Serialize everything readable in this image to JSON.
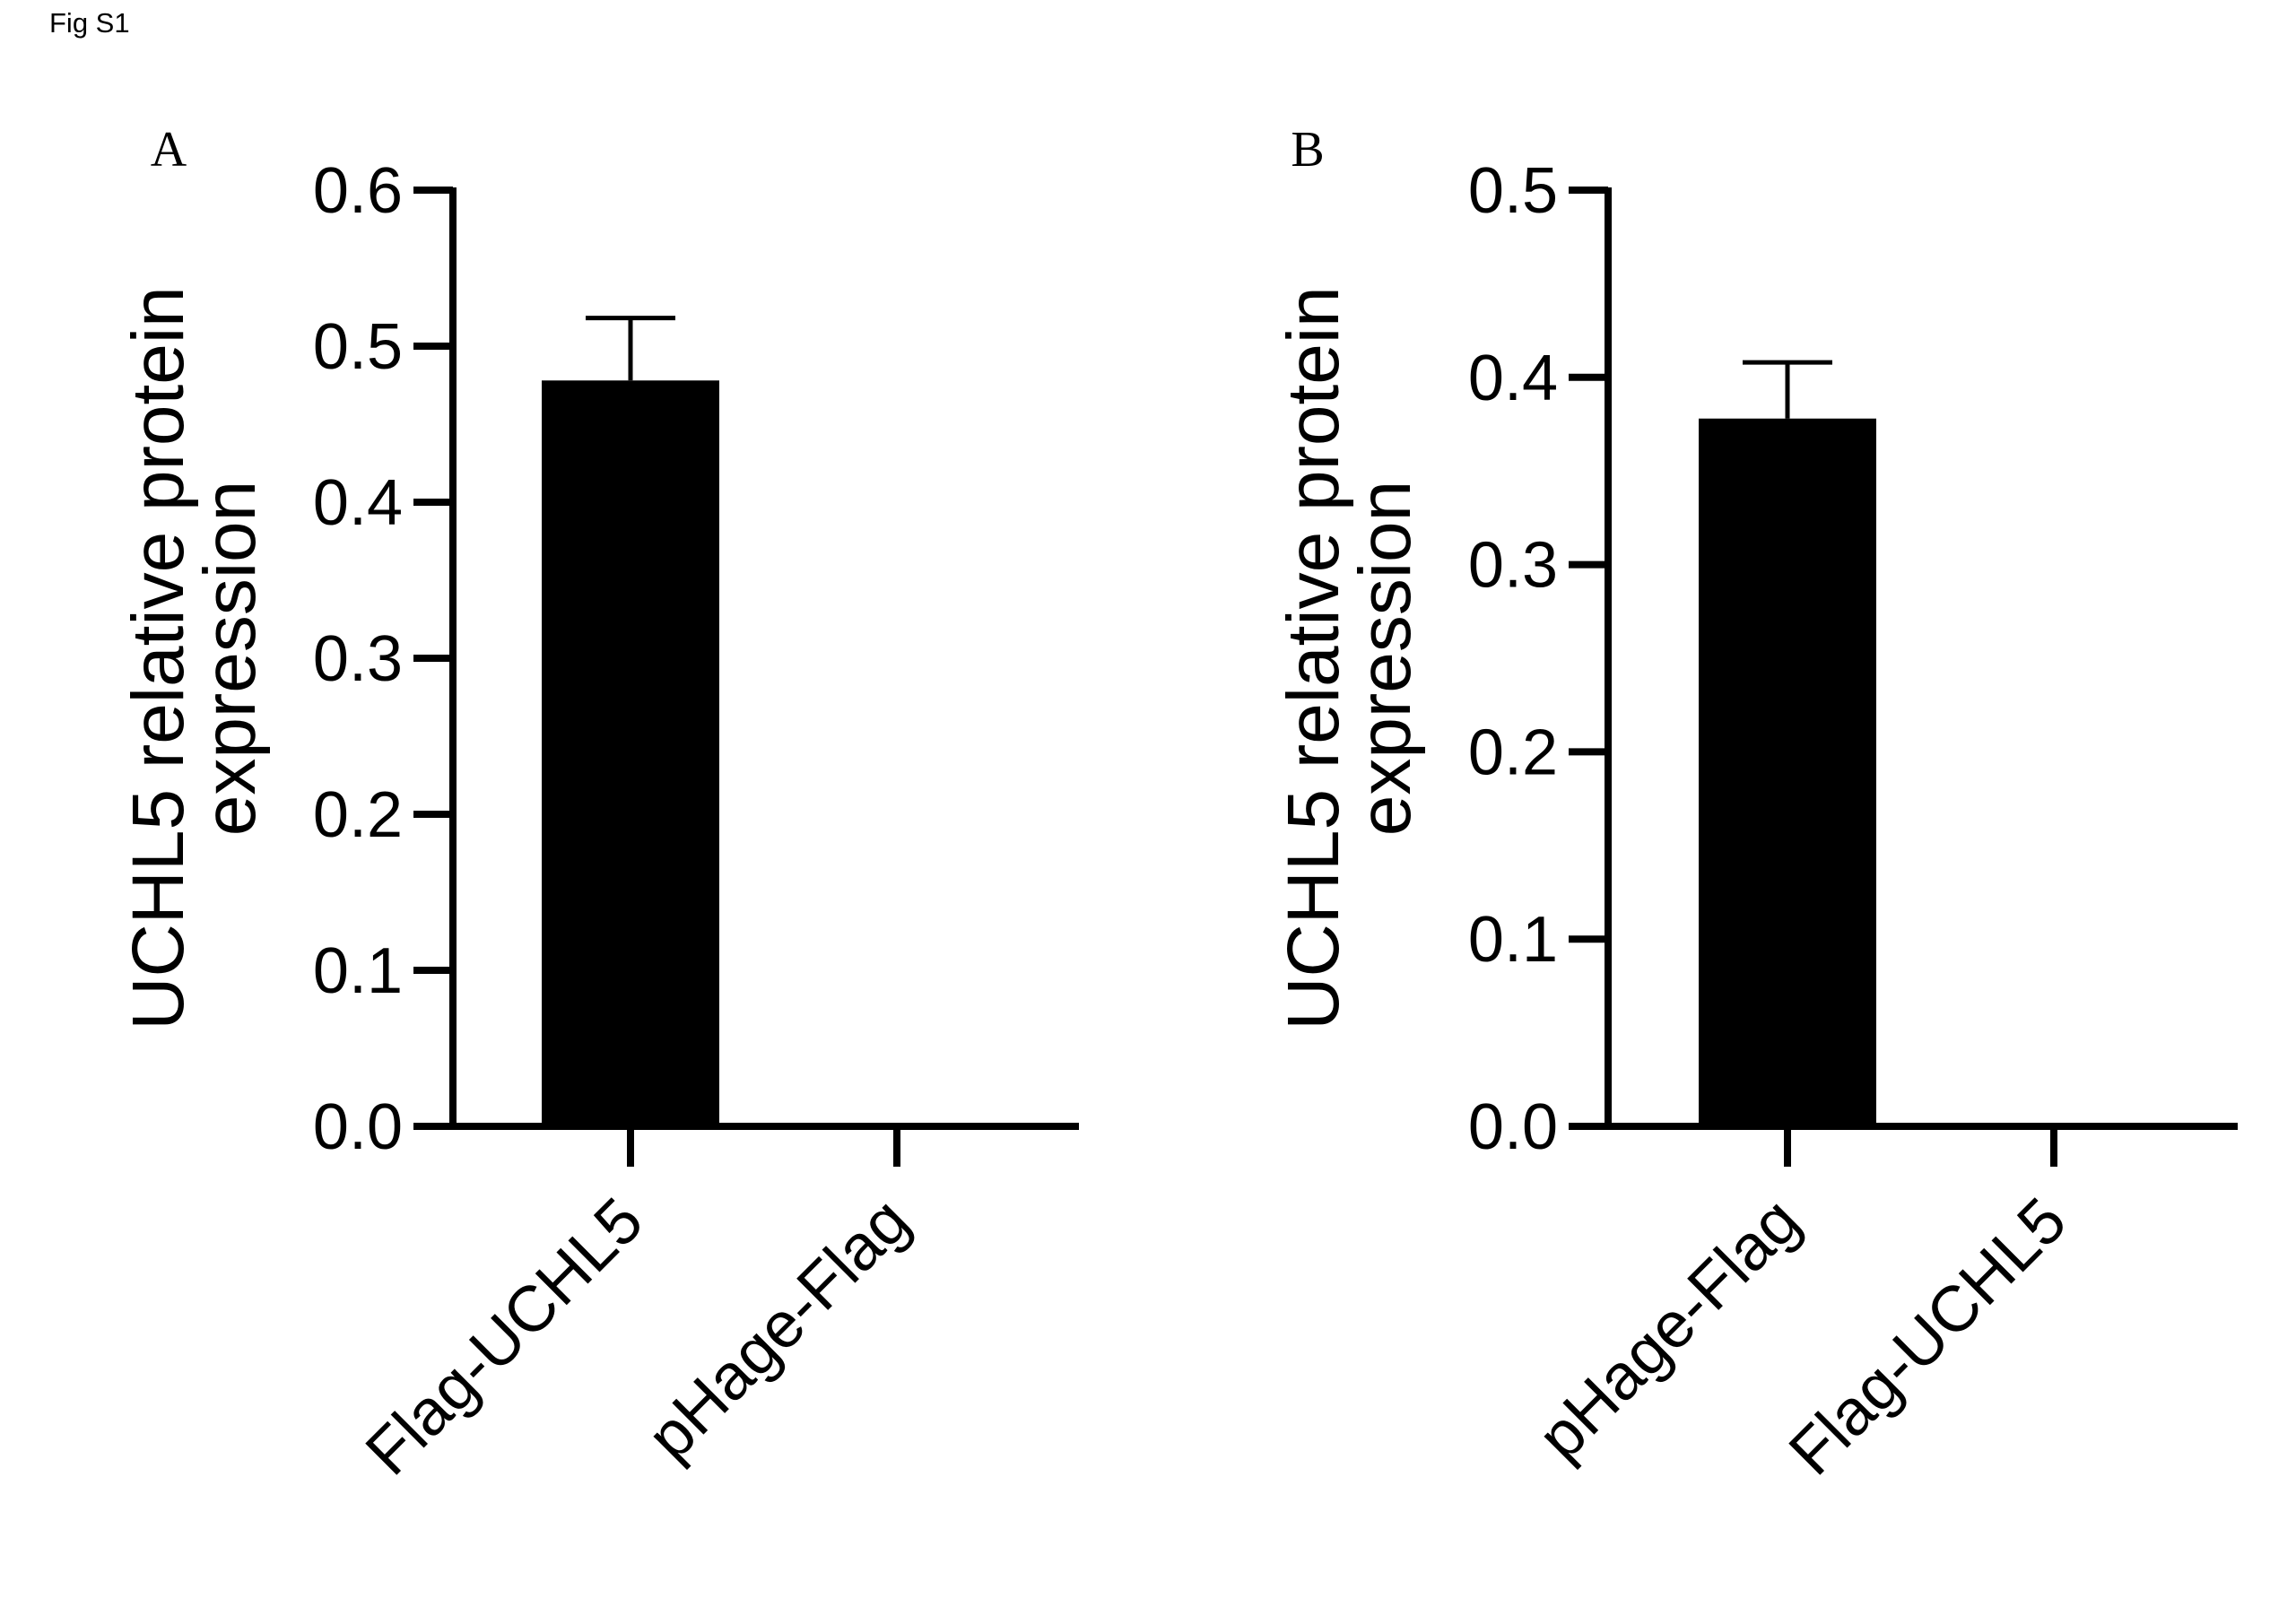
{
  "figure_label": "Fig S1",
  "chart_data": [
    {
      "type": "bar",
      "panel": "A",
      "categories": [
        "Flag-UCHL5",
        "pHage-Flag"
      ],
      "values": [
        0.478,
        0.0
      ],
      "error_upper": [
        0.04,
        0.0
      ],
      "ylabel_lines": [
        "UCHL5 relative protein",
        "expression"
      ],
      "yticks": [
        "0.0",
        "0.1",
        "0.2",
        "0.3",
        "0.4",
        "0.5",
        "0.6"
      ],
      "ylim": [
        0,
        0.6
      ],
      "bar_color": "#000000"
    },
    {
      "type": "bar",
      "panel": "B",
      "categories": [
        "pHage-Flag",
        "Flag-UCHL5"
      ],
      "values": [
        0.378,
        0.0
      ],
      "error_upper": [
        0.03,
        0.0
      ],
      "ylabel_lines": [
        "UCHL5 relative protein",
        "expression"
      ],
      "yticks": [
        "0.0",
        "0.1",
        "0.2",
        "0.3",
        "0.4",
        "0.5"
      ],
      "ylim": [
        0,
        0.5
      ],
      "bar_color": "#000000"
    }
  ]
}
